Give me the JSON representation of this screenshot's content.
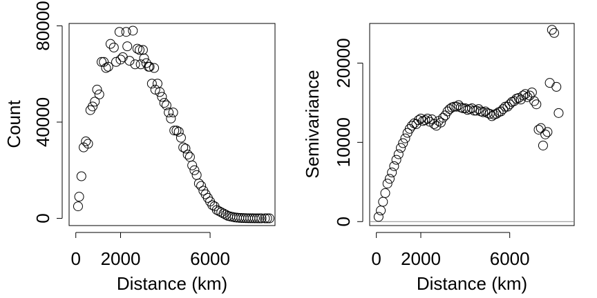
{
  "chart_data": [
    {
      "type": "scatter",
      "xlabel": "Distance (km)",
      "ylabel": "Count",
      "xlim": [
        -300,
        8900
      ],
      "ylim": [
        -3000,
        81000
      ],
      "x_ticks": [
        0,
        2000,
        6000
      ],
      "y_ticks": [
        0,
        40000,
        80000
      ],
      "grid": false,
      "points": [
        [
          100,
          5000
        ],
        [
          150,
          9000
        ],
        [
          250,
          17500
        ],
        [
          350,
          29500
        ],
        [
          450,
          32000
        ],
        [
          550,
          31000
        ],
        [
          650,
          45000
        ],
        [
          750,
          46500
        ],
        [
          850,
          48500
        ],
        [
          950,
          53500
        ],
        [
          1050,
          51500
        ],
        [
          1150,
          65000
        ],
        [
          1250,
          65000
        ],
        [
          1350,
          62500
        ],
        [
          1450,
          63000
        ],
        [
          1550,
          72500
        ],
        [
          1700,
          71000
        ],
        [
          1800,
          65000
        ],
        [
          1950,
          77500
        ],
        [
          2000,
          66000
        ],
        [
          2100,
          67000
        ],
        [
          2250,
          77500
        ],
        [
          2300,
          71500
        ],
        [
          2400,
          65500
        ],
        [
          2550,
          78000
        ],
        [
          2650,
          64000
        ],
        [
          2750,
          70500
        ],
        [
          2850,
          70000
        ],
        [
          2900,
          64000
        ],
        [
          3000,
          70000
        ],
        [
          3050,
          66500
        ],
        [
          3150,
          64500
        ],
        [
          3250,
          63000
        ],
        [
          3300,
          63000
        ],
        [
          3400,
          56000
        ],
        [
          3500,
          62500
        ],
        [
          3550,
          53500
        ],
        [
          3650,
          56000
        ],
        [
          3750,
          52500
        ],
        [
          3850,
          50500
        ],
        [
          3950,
          48000
        ],
        [
          4050,
          47000
        ],
        [
          4150,
          44000
        ],
        [
          4250,
          41500
        ],
        [
          4350,
          44000
        ],
        [
          4400,
          36500
        ],
        [
          4500,
          36500
        ],
        [
          4600,
          36000
        ],
        [
          4700,
          33500
        ],
        [
          4800,
          29500
        ],
        [
          4900,
          29000
        ],
        [
          5000,
          26500
        ],
        [
          5100,
          25500
        ],
        [
          5200,
          22000
        ],
        [
          5300,
          20000
        ],
        [
          5400,
          18000
        ],
        [
          5500,
          14500
        ],
        [
          5600,
          13500
        ],
        [
          5700,
          11500
        ],
        [
          5800,
          10000
        ],
        [
          5900,
          8500
        ],
        [
          6000,
          7000
        ],
        [
          6100,
          5500
        ],
        [
          6200,
          5000
        ],
        [
          6300,
          3500
        ],
        [
          6400,
          3000
        ],
        [
          6500,
          2500
        ],
        [
          6600,
          2000
        ],
        [
          6700,
          1500
        ],
        [
          6800,
          1000
        ],
        [
          6900,
          800
        ],
        [
          7000,
          600
        ],
        [
          7100,
          400
        ],
        [
          7200,
          300
        ],
        [
          7300,
          200
        ],
        [
          7400,
          150
        ],
        [
          7500,
          100
        ],
        [
          7600,
          80
        ],
        [
          7700,
          60
        ],
        [
          7800,
          40
        ],
        [
          7900,
          30
        ],
        [
          8000,
          20
        ],
        [
          8100,
          15
        ],
        [
          8200,
          10
        ],
        [
          8300,
          5
        ],
        [
          8450,
          0
        ],
        [
          8550,
          0
        ],
        [
          8650,
          0
        ]
      ]
    },
    {
      "type": "scatter",
      "xlabel": "Distance (km)",
      "ylabel": "Semivariance",
      "xlim": [
        -300,
        8900
      ],
      "ylim": [
        -500,
        25000
      ],
      "x_ticks": [
        0,
        2000,
        6000
      ],
      "y_ticks": [
        0,
        10000,
        20000
      ],
      "grid": false,
      "hline": 0,
      "points": [
        [
          100,
          600
        ],
        [
          200,
          1400
        ],
        [
          300,
          2500
        ],
        [
          400,
          3600
        ],
        [
          500,
          4800
        ],
        [
          600,
          5400
        ],
        [
          700,
          6200
        ],
        [
          800,
          7000
        ],
        [
          900,
          7800
        ],
        [
          1000,
          8500
        ],
        [
          1100,
          9300
        ],
        [
          1200,
          9900
        ],
        [
          1300,
          10500
        ],
        [
          1400,
          11200
        ],
        [
          1500,
          11700
        ],
        [
          1600,
          12100
        ],
        [
          1700,
          12400
        ],
        [
          1800,
          12300
        ],
        [
          1900,
          12800
        ],
        [
          2000,
          13000
        ],
        [
          2100,
          12700
        ],
        [
          2200,
          12800
        ],
        [
          2300,
          13000
        ],
        [
          2400,
          12600
        ],
        [
          2500,
          12900
        ],
        [
          2600,
          12300
        ],
        [
          2700,
          12100
        ],
        [
          2800,
          12700
        ],
        [
          2900,
          12500
        ],
        [
          3000,
          13100
        ],
        [
          3100,
          13400
        ],
        [
          3200,
          13900
        ],
        [
          3300,
          14200
        ],
        [
          3400,
          14400
        ],
        [
          3500,
          14500
        ],
        [
          3600,
          14500
        ],
        [
          3700,
          14700
        ],
        [
          3800,
          14400
        ],
        [
          3900,
          14300
        ],
        [
          4000,
          14300
        ],
        [
          4100,
          14100
        ],
        [
          4200,
          14200
        ],
        [
          4300,
          14300
        ],
        [
          4400,
          14000
        ],
        [
          4500,
          14000
        ],
        [
          4600,
          14200
        ],
        [
          4700,
          13900
        ],
        [
          4800,
          13800
        ],
        [
          4900,
          13900
        ],
        [
          5000,
          13700
        ],
        [
          5100,
          13600
        ],
        [
          5200,
          13300
        ],
        [
          5300,
          13500
        ],
        [
          5400,
          13600
        ],
        [
          5500,
          13800
        ],
        [
          5600,
          13900
        ],
        [
          5700,
          14200
        ],
        [
          5800,
          14500
        ],
        [
          5900,
          14500
        ],
        [
          6000,
          14800
        ],
        [
          6100,
          15100
        ],
        [
          6200,
          15200
        ],
        [
          6300,
          15500
        ],
        [
          6400,
          15600
        ],
        [
          6500,
          15400
        ],
        [
          6600,
          15900
        ],
        [
          6700,
          16100
        ],
        [
          6800,
          15700
        ],
        [
          6900,
          15900
        ],
        [
          7000,
          16300
        ],
        [
          7100,
          15200
        ],
        [
          7200,
          14800
        ],
        [
          7300,
          11600
        ],
        [
          7400,
          11800
        ],
        [
          7500,
          9600
        ],
        [
          7600,
          11000
        ],
        [
          7700,
          11300
        ],
        [
          7800,
          17500
        ],
        [
          7900,
          24200
        ],
        [
          8000,
          23800
        ],
        [
          8100,
          17000
        ],
        [
          8200,
          13700
        ]
      ]
    }
  ]
}
